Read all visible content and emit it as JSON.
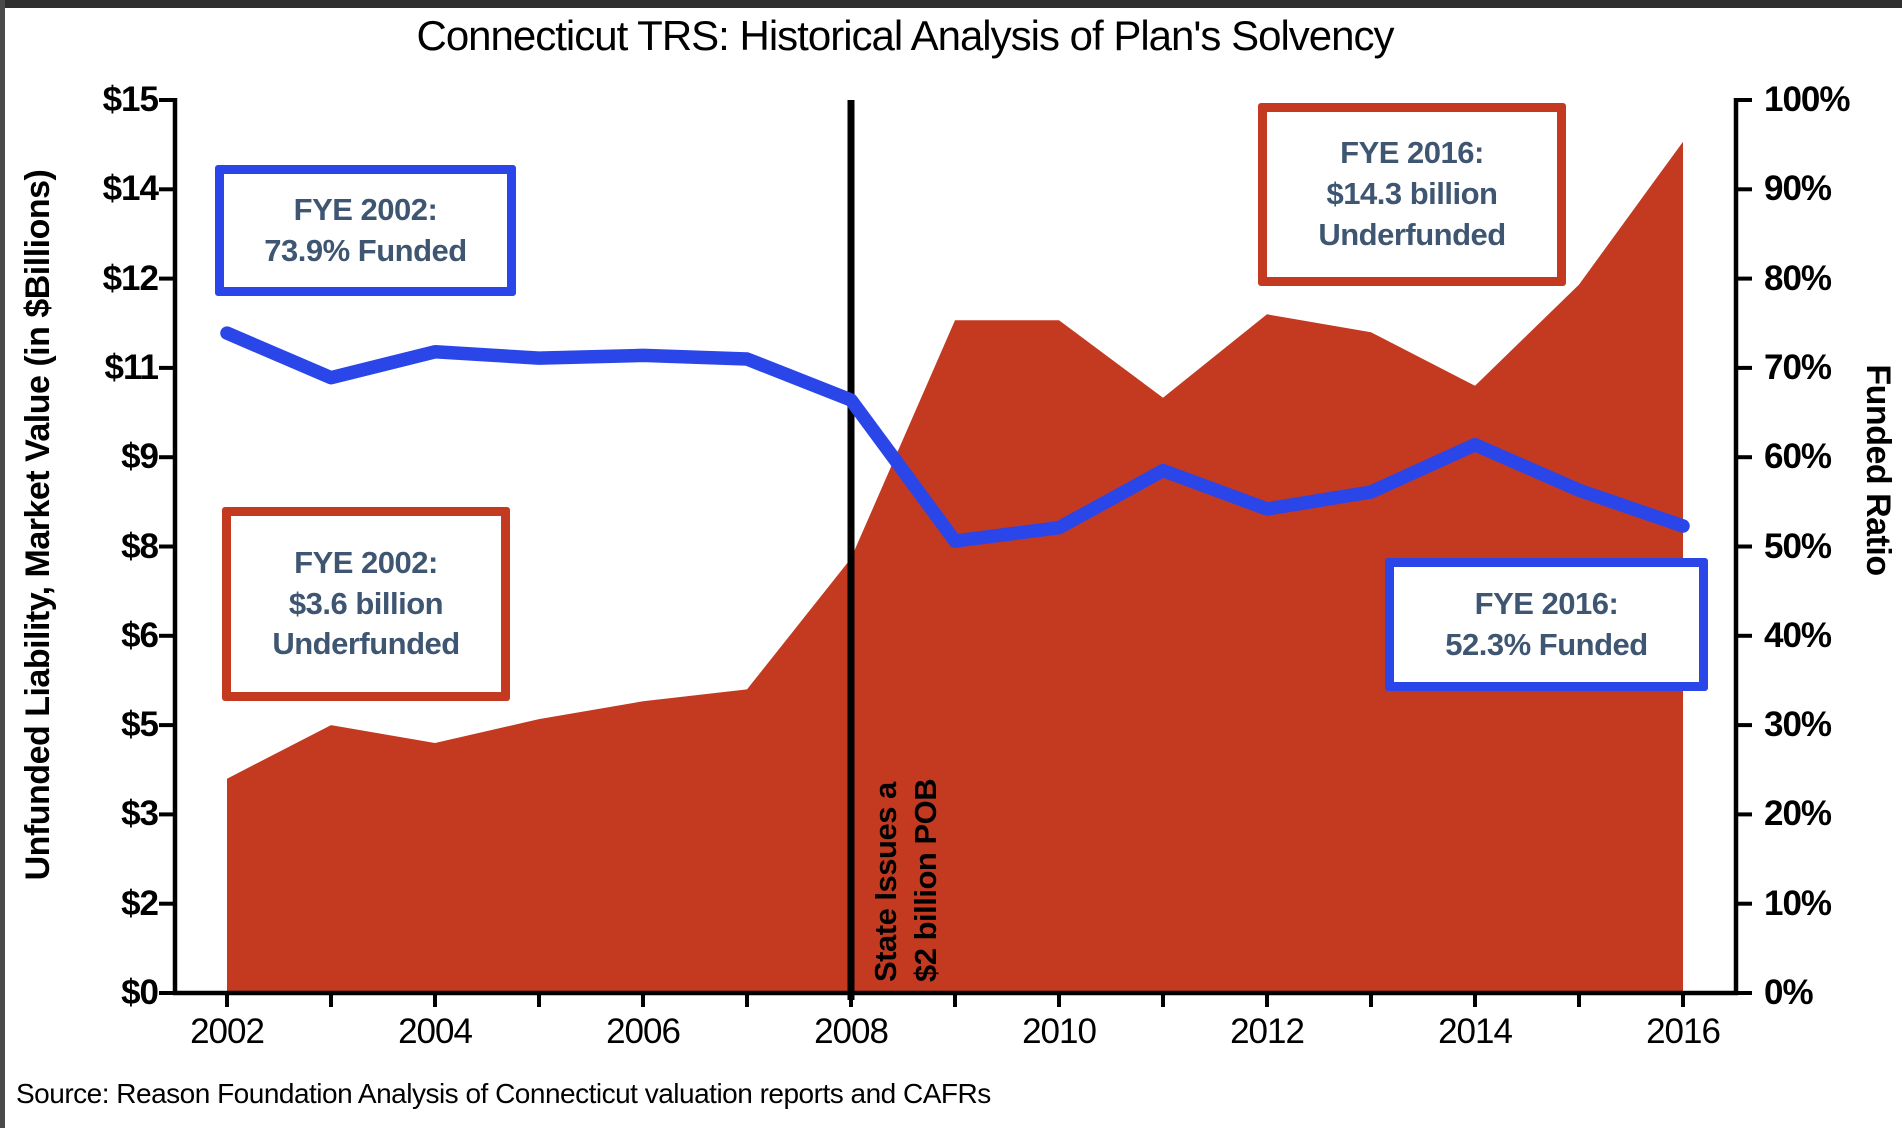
{
  "title": "Connecticut TRS: Historical Analysis of Plan's Solvency",
  "source_note": "Source: Reason Foundation Analysis of Connecticut valuation reports and CAFRs",
  "colors": {
    "area": "#c33a21",
    "line": "#2b46e8",
    "event_line": "#000000",
    "axis": "#000000",
    "annotation_text": "#3e5672",
    "blue_box_border": "#2b46e8",
    "red_box_border": "#c33a21"
  },
  "annotations": {
    "fye2002_funded": {
      "line1": "FYE 2002:",
      "line2": "73.9% Funded"
    },
    "fye2002_underfunded": {
      "line1": "FYE 2002:",
      "line2": "$3.6 billion",
      "line3": "Underfunded"
    },
    "fye2016_underfunded": {
      "line1": "FYE 2016:",
      "line2": "$14.3 billion",
      "line3": "Underfunded"
    },
    "fye2016_funded": {
      "line1": "FYE 2016:",
      "line2": "52.3% Funded"
    },
    "event": {
      "line1": "State Issues a",
      "line2": "$2 billion POB"
    }
  },
  "chart_data": {
    "type": "area",
    "title": "Connecticut TRS: Historical Analysis of Plan's Solvency",
    "x": [
      2002,
      2003,
      2004,
      2005,
      2006,
      2007,
      2008,
      2009,
      2010,
      2011,
      2012,
      2013,
      2014,
      2015,
      2016
    ],
    "series": [
      {
        "name": "Unfunded Liability, Market Value (in $Billions)",
        "type": "area",
        "axis": "left",
        "color": "#c33a21",
        "values": [
          3.6,
          4.5,
          4.2,
          4.6,
          4.9,
          5.1,
          7.3,
          11.3,
          11.3,
          10.0,
          11.4,
          11.1,
          10.2,
          11.9,
          14.3
        ]
      },
      {
        "name": "Funded Ratio",
        "type": "line",
        "axis": "right",
        "color": "#2b46e8",
        "values": [
          73.9,
          68.9,
          71.8,
          71.1,
          71.4,
          71.0,
          66.4,
          50.6,
          52.1,
          58.5,
          54.2,
          56.1,
          61.4,
          56.3,
          52.3
        ]
      }
    ],
    "event_line": {
      "x": 2008,
      "label": "State Issues a $2 billion POB"
    },
    "left_axis": {
      "title": "Unfunded Liability, Market Value (in $Billions)",
      "range": [
        0,
        15
      ],
      "tick_values": [
        15,
        13.5,
        12,
        10.5,
        9,
        7.5,
        6,
        4.5,
        3,
        1.5,
        0
      ],
      "tick_labels": [
        "$15",
        "$14",
        "$12",
        "$11",
        "$9",
        "$8",
        "$6",
        "$5",
        "$3",
        "$2",
        "$0"
      ]
    },
    "right_axis": {
      "title": "Funded Ratio",
      "range": [
        0,
        100
      ],
      "tick_labels": [
        "100%",
        "90%",
        "80%",
        "70%",
        "60%",
        "50%",
        "40%",
        "30%",
        "20%",
        "10%",
        "0%"
      ]
    },
    "x_axis": {
      "tick_labels": [
        "2002",
        "2004",
        "2006",
        "2008",
        "2010",
        "2012",
        "2014",
        "2016"
      ]
    },
    "grid": false,
    "legend": "none"
  }
}
